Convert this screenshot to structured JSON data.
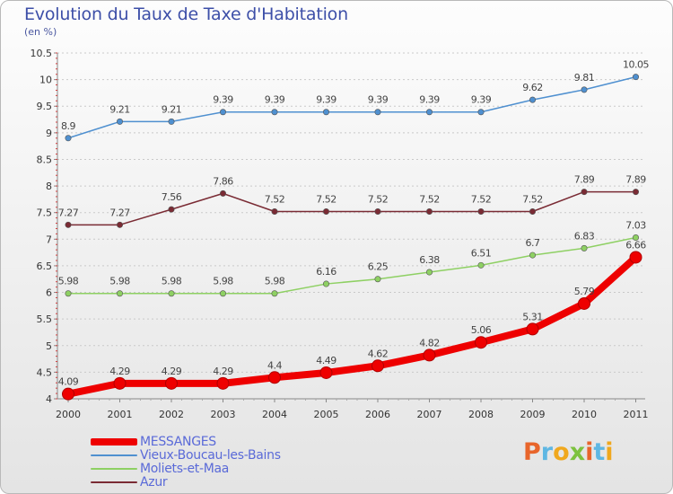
{
  "title": "Evolution du Taux de Taxe d'Habitation",
  "subtitle": "(en %)",
  "chart_data": {
    "type": "line",
    "title": "Evolution du Taux de Taxe d'Habitation",
    "ylabel": "(en %)",
    "ylim": [
      4,
      10.5
    ],
    "yticks": [
      "4",
      "4.5",
      "5",
      "5.5",
      "6",
      "6.5",
      "7",
      "7.5",
      "8",
      "8.5",
      "9",
      "9.5",
      "10",
      "10.5"
    ],
    "x": [
      "2000",
      "2001",
      "2002",
      "2003",
      "2004",
      "2005",
      "2006",
      "2007",
      "2008",
      "2009",
      "2010",
      "2011"
    ],
    "grid": true,
    "legend_position": "bottom-left",
    "series": [
      {
        "name": "MESSANGES",
        "color": "#ee0000",
        "values": [
          4.09,
          4.29,
          4.29,
          4.29,
          4.4,
          4.49,
          4.62,
          4.82,
          5.06,
          5.31,
          5.79,
          6.66
        ],
        "labels": [
          "4.09",
          "4.29",
          "4.29",
          "4.29",
          "4.4",
          "4.49",
          "4.62",
          "4.82",
          "5.06",
          "5.31",
          "5.79",
          "6.66"
        ]
      },
      {
        "name": "Vieux-Boucau-les-Bains",
        "color": "#4f90d0",
        "values": [
          8.9,
          9.21,
          9.21,
          9.39,
          9.39,
          9.39,
          9.39,
          9.39,
          9.39,
          9.62,
          9.81,
          10.05
        ],
        "labels": [
          "8.9",
          "9.21",
          "9.21",
          "9.39",
          "9.39",
          "9.39",
          "9.39",
          "9.39",
          "9.39",
          "9.62",
          "9.81",
          "10.05"
        ]
      },
      {
        "name": "Moliets-et-Maa",
        "color": "#8ed063",
        "values": [
          5.98,
          5.98,
          5.98,
          5.98,
          5.98,
          6.16,
          6.25,
          6.38,
          6.51,
          6.7,
          6.83,
          7.03
        ],
        "labels": [
          "5.98",
          "5.98",
          "5.98",
          "5.98",
          "5.98",
          "6.16",
          "6.25",
          "6.38",
          "6.51",
          "6.7",
          "6.83",
          "7.03"
        ]
      },
      {
        "name": "Azur",
        "color": "#7a2b34",
        "values": [
          7.27,
          7.27,
          7.56,
          7.86,
          7.52,
          7.52,
          7.52,
          7.52,
          7.52,
          7.52,
          7.89,
          7.89
        ],
        "labels": [
          "7.27",
          "7.27",
          "7.56",
          "7.86",
          "7.52",
          "7.52",
          "7.52",
          "7.52",
          "7.52",
          "7.52",
          "7.89",
          "7.89"
        ]
      }
    ]
  },
  "logo": {
    "text": "Proxiti",
    "letter_colors": [
      "#e8652b",
      "#5fb7e3",
      "#f0a81e",
      "#7dc23f",
      "#e8652b",
      "#5fb7e3",
      "#f0a81e"
    ]
  }
}
